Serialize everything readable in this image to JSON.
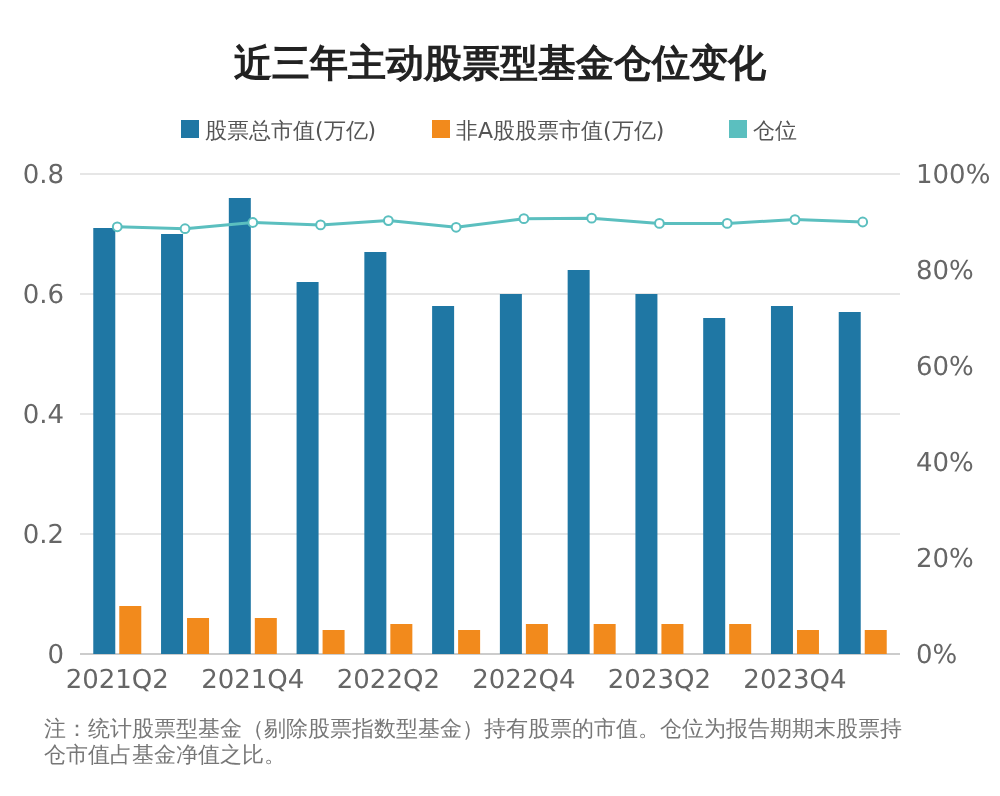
{
  "chart_data": {
    "type": "bar",
    "title": "近三年主动股票型基金仓位变化",
    "categories": [
      "2021Q2",
      null,
      "2021Q4",
      null,
      "2022Q2",
      null,
      "2022Q4",
      null,
      "2023Q2",
      null,
      "2023Q4",
      null
    ],
    "series": [
      {
        "name": "股票总市值(万亿)",
        "color": "#1f77a4",
        "values": [
          0.71,
          0.7,
          0.76,
          0.62,
          0.67,
          0.58,
          0.6,
          0.64,
          0.6,
          0.56,
          0.58,
          0.57
        ]
      },
      {
        "name": "非A股股票市值(万亿)",
        "color": "#f28a1c",
        "values": [
          0.08,
          0.06,
          0.06,
          0.04,
          0.05,
          0.04,
          0.05,
          0.05,
          0.05,
          0.05,
          0.04,
          0.04
        ]
      },
      {
        "name": "仓位",
        "type": "line",
        "axis": "y2",
        "color": "#5bbfbf",
        "marker": "circle",
        "values": [
          89.0,
          88.6,
          89.9,
          89.4,
          90.3,
          88.9,
          90.7,
          90.8,
          89.7,
          89.7,
          90.5,
          90.0
        ]
      }
    ],
    "ylim": [
      0,
      0.8
    ],
    "yticks": [
      0,
      0.2,
      0.4,
      0.6,
      0.8
    ],
    "y2lim": [
      0,
      100
    ],
    "y2ticks": [
      {
        "value": 0,
        "label": "0%"
      },
      {
        "value": 20,
        "label": "20%"
      },
      {
        "value": 40,
        "label": "40%"
      },
      {
        "value": 60,
        "label": "60%"
      },
      {
        "value": 80,
        "label": "80%"
      },
      {
        "value": 100,
        "label": "100%"
      }
    ],
    "grid": "y",
    "legend": "top",
    "annotations": [
      "注：统计股票型基金（剔除股票指数型基金）持有股票的市值。仓位为报告期期末股票持仓市值占基金净值之比。"
    ]
  }
}
